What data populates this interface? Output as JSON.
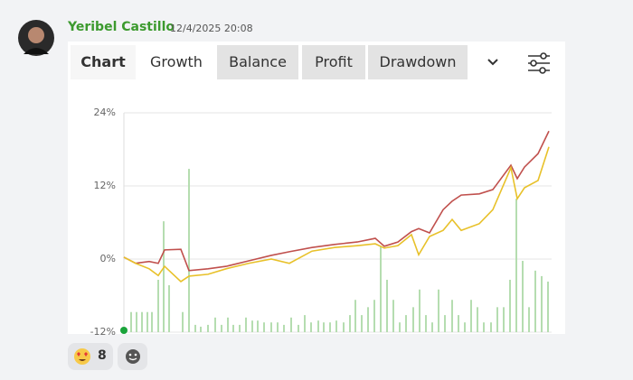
{
  "message": {
    "author": "Yeribel Castillo",
    "timestamp": "12/4/2025 20:08"
  },
  "tabs": [
    "Chart",
    "Growth",
    "Balance",
    "Profit",
    "Drawdown"
  ],
  "active_tab": 1,
  "reactions": [
    {
      "count": 8
    }
  ],
  "chart_data": {
    "type": "line",
    "x": [
      0,
      13,
      28,
      38,
      45,
      63,
      72,
      93,
      113,
      138,
      163,
      183,
      208,
      233,
      258,
      278,
      288,
      303,
      318,
      326,
      338,
      353,
      363,
      373,
      393,
      408,
      428,
      435,
      443,
      458,
      470
    ],
    "xlim": [
      0,
      473
    ],
    "ylim": [
      -12,
      24
    ],
    "yticks": [
      {
        "value": -12,
        "label": "-12%"
      },
      {
        "value": 0,
        "label": "0%"
      },
      {
        "value": 12,
        "label": "12%"
      },
      {
        "value": 24,
        "label": "24%"
      }
    ],
    "grid": true,
    "series": [
      {
        "color": "#c0504d",
        "values": [
          0.3,
          -0.7,
          -0.4,
          -0.7,
          1.5,
          1.6,
          -1.9,
          -1.6,
          -1.2,
          -0.3,
          0.6,
          1.2,
          1.9,
          2.4,
          2.8,
          3.4,
          2.1,
          2.8,
          4.5,
          5.0,
          4.3,
          8.1,
          9.5,
          10.5,
          10.7,
          11.4,
          15.4,
          13.2,
          15.1,
          17.3,
          21.0
        ]
      },
      {
        "color": "#e8c12a",
        "values": [
          0.3,
          -0.7,
          -1.6,
          -2.7,
          -1.2,
          -3.7,
          -2.8,
          -2.5,
          -1.6,
          -0.7,
          0,
          -0.7,
          1.3,
          1.9,
          2.2,
          2.5,
          1.8,
          2.2,
          4.0,
          0.7,
          3.7,
          4.7,
          6.5,
          4.7,
          5.8,
          8.1,
          15.0,
          9.9,
          11.7,
          12.9,
          18.4
        ]
      },
      {
        "type": "bar",
        "color": "#b5ddb0",
        "x": [
          8,
          14,
          20,
          26,
          31,
          38,
          44,
          50,
          65,
          72,
          79,
          85,
          93,
          101,
          108,
          115,
          121,
          128,
          135,
          142,
          148,
          155,
          163,
          170,
          177,
          185,
          193,
          200,
          207,
          215,
          221,
          228,
          235,
          243,
          250,
          256,
          263,
          270,
          277,
          284,
          291,
          298,
          305,
          312,
          320,
          327,
          334,
          341,
          348,
          355,
          363,
          370,
          377,
          384,
          391,
          398,
          406,
          413,
          420,
          427,
          434,
          441,
          448,
          455,
          462,
          469
        ],
        "values": [
          -8.7,
          -8.7,
          -8.7,
          -8.7,
          -8.7,
          -3.4,
          6.2,
          -4.3,
          -8.7,
          14.8,
          -10.8,
          -11.1,
          -10.8,
          -9.6,
          -10.8,
          -9.6,
          -10.8,
          -10.8,
          -9.6,
          -10.1,
          -10.1,
          -10.4,
          -10.4,
          -10.4,
          -10.8,
          -9.6,
          -10.8,
          -9.2,
          -10.4,
          -10.1,
          -10.4,
          -10.4,
          -10.1,
          -10.4,
          -9.2,
          -6.7,
          -9.2,
          -7.9,
          -6.7,
          2.1,
          -3.4,
          -6.7,
          -10.4,
          -9.2,
          -7.9,
          -5.0,
          -9.2,
          -10.4,
          -5.0,
          -9.2,
          -6.7,
          -9.2,
          -10.4,
          -6.7,
          -7.9,
          -10.4,
          -10.4,
          -7.9,
          -7.9,
          -3.4,
          9.9,
          -0.3,
          -7.9,
          -1.9,
          -2.8,
          -3.7
        ]
      }
    ]
  }
}
